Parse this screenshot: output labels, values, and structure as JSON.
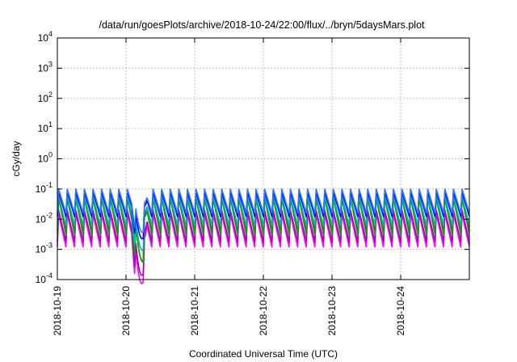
{
  "chart_data": {
    "type": "line",
    "title": "/data/run/goesPlots/archive/2018-10-24/22:00/flux/../bryn/5daysMars.plot",
    "xlabel": "Coordinated Universal Time (UTC)",
    "ylabel": "cGy/day",
    "y_scale": "log",
    "ylim": [
      "1e-4",
      "1e4"
    ],
    "xlim": [
      "2018-10-19",
      "2018-10-25"
    ],
    "grid": true,
    "y_ticks": [
      {
        "mantissa": "10",
        "exp": "-4",
        "value": 0.0001
      },
      {
        "mantissa": "10",
        "exp": "-3",
        "value": 0.001
      },
      {
        "mantissa": "10",
        "exp": "-2",
        "value": 0.01
      },
      {
        "mantissa": "10",
        "exp": "-1",
        "value": 0.1
      },
      {
        "mantissa": "10",
        "exp": "0",
        "value": 1
      },
      {
        "mantissa": "10",
        "exp": "1",
        "value": 10
      },
      {
        "mantissa": "10",
        "exp": "2",
        "value": 100
      },
      {
        "mantissa": "10",
        "exp": "3",
        "value": 1000
      },
      {
        "mantissa": "10",
        "exp": "4",
        "value": 10000
      }
    ],
    "x_ticks": [
      "2018-10-19",
      "2018-10-20",
      "2018-10-21",
      "2018-10-22",
      "2018-10-23",
      "2018-10-24"
    ],
    "sawtooth": {
      "period_hours": 3,
      "cycle_start_hour": 0,
      "data_start_hour": 0,
      "data_end_hour": 144,
      "gap_start_hour": 26,
      "gap_end_hour": 33
    },
    "series": [
      {
        "color": "#ff00ff",
        "peak": 0.015,
        "trough": 0.0012
      },
      {
        "color": "#aa00bb",
        "peak": 0.02,
        "trough": 0.0018
      },
      {
        "color": "#ff0000",
        "peak": 0.07,
        "trough": 0.004
      },
      {
        "color": "#00aa00",
        "peak": 0.05,
        "trough": 0.003
      },
      {
        "color": "#00b7b7",
        "peak": 0.06,
        "trough": 0.006
      },
      {
        "color": "#0000ff",
        "peak": 0.085,
        "trough": 0.012
      },
      {
        "color": "#3377ff",
        "peak": 0.1,
        "trough": 0.016
      }
    ]
  }
}
